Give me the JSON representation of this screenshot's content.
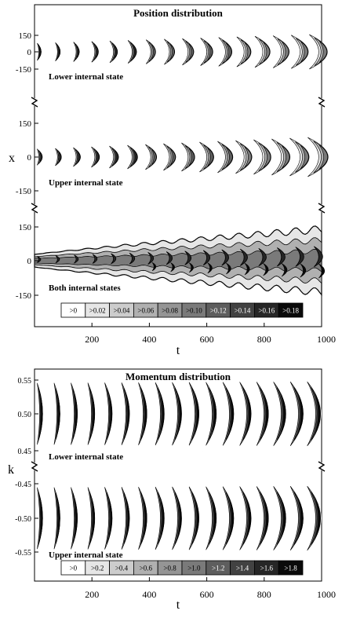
{
  "chart_data": [
    {
      "type": "heatmap",
      "title": "Position distribution",
      "xlabel": "t",
      "ylabel": "x",
      "x_ticks": [
        "200",
        "400",
        "600",
        "800",
        "1000"
      ],
      "xlim": [
        0,
        1000
      ],
      "panels": [
        {
          "label": "Lower internal state",
          "y_ticks": [
            "150",
            "0",
            "-150"
          ],
          "ylim": [
            -150,
            150
          ],
          "pulse_width": [
            6,
            22
          ],
          "pulse_height": [
            22,
            44
          ],
          "pulse_curve": [
            2,
            12
          ]
        },
        {
          "label": "Upper internal state",
          "y_ticks": [
            "150",
            "0",
            "-150"
          ],
          "ylim": [
            -150,
            150
          ],
          "pulse_width": [
            9,
            24
          ],
          "pulse_height": [
            20,
            50
          ],
          "pulse_curve": [
            2,
            14
          ]
        },
        {
          "label": "Both internal states",
          "y_ticks": [
            "150",
            "0",
            "-150"
          ],
          "ylim": [
            -150,
            150
          ]
        }
      ],
      "pulse_times": [
        15,
        80,
        145,
        210,
        275,
        340,
        405,
        470,
        535,
        600,
        665,
        730,
        795,
        860,
        925,
        990
      ],
      "colorbar": {
        "labels": [
          ">0",
          ">0.02",
          ">0.04",
          ">0.06",
          ">0.08",
          ">0.10",
          ">0.12",
          ">0.14",
          ">0.16",
          ">0.18"
        ],
        "thresholds": [
          0,
          0.02,
          0.04,
          0.06,
          0.08,
          0.1,
          0.12,
          0.14,
          0.16,
          0.18
        ]
      }
    },
    {
      "type": "heatmap",
      "title": "Momentum distribution",
      "xlabel": "t",
      "ylabel": "k",
      "x_ticks": [
        "200",
        "400",
        "600",
        "800",
        "1000"
      ],
      "xlim": [
        0,
        1000
      ],
      "panels": [
        {
          "label": "Lower internal state",
          "y_ticks": [
            "0.55",
            "0.50",
            "0.45"
          ],
          "ylim": [
            0.43,
            0.57
          ],
          "pulse_width": [
            10,
            16
          ],
          "pulse_height": [
            92,
            96
          ],
          "pulse_curve": [
            4,
            14
          ]
        },
        {
          "label": "Upper internal state",
          "y_ticks": [
            "-0.45",
            "-0.50",
            "-0.55"
          ],
          "ylim": [
            -0.57,
            -0.43
          ],
          "pulse_width": [
            10,
            16
          ],
          "pulse_height": [
            92,
            96
          ],
          "pulse_curve": [
            4,
            14
          ]
        }
      ],
      "pulse_times": [
        15,
        75,
        135,
        195,
        255,
        315,
        375,
        435,
        495,
        555,
        615,
        675,
        735,
        795,
        855,
        915,
        975
      ],
      "colorbar": {
        "labels": [
          ">0",
          ">0.2",
          ">0.4",
          ">0.6",
          ">0.8",
          ">1.0",
          ">1.2",
          ">1.4",
          ">1.6",
          ">1.8"
        ],
        "thresholds": [
          0,
          0.2,
          0.4,
          0.6,
          0.8,
          1.0,
          1.2,
          1.4,
          1.6,
          1.8
        ]
      }
    }
  ],
  "palette": [
    "#ffffff",
    "#e6e6e6",
    "#cccccc",
    "#b0b0b0",
    "#959595",
    "#7a7a7a",
    "#5e5e5e",
    "#424242",
    "#262626",
    "#0a0a0a"
  ]
}
